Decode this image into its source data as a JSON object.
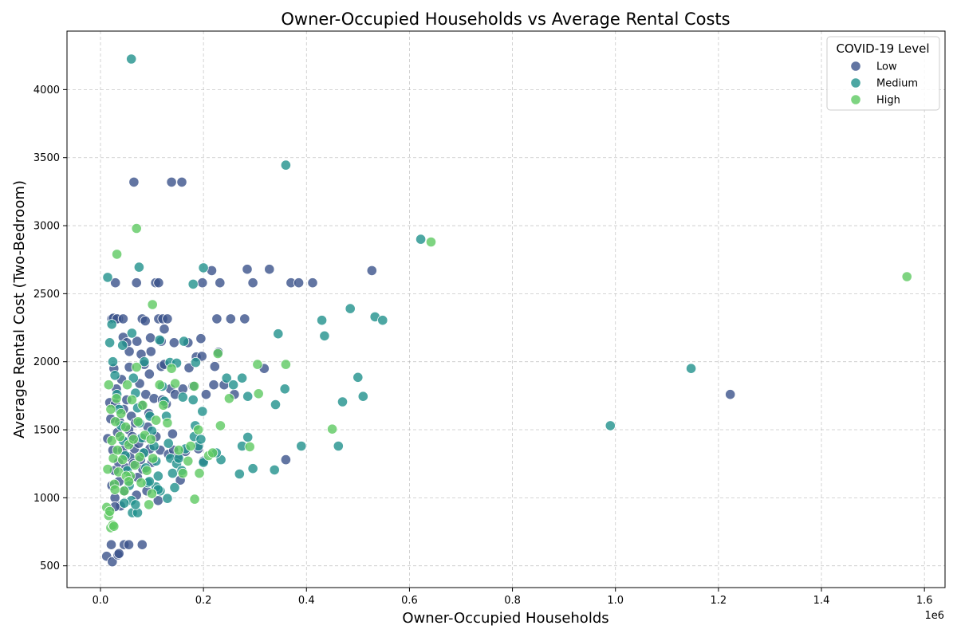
{
  "chart_data": {
    "type": "scatter",
    "title": "Owner-Occupied Households vs Average Rental Costs",
    "xlabel": "Owner-Occupied Households",
    "ylabel": "Average Rental Cost (Two-Bedroom)",
    "x_offset_label": "1e6",
    "xlim": [
      -65000,
      1640000
    ],
    "ylim": [
      340,
      4430
    ],
    "x_ticks": [
      0,
      200000,
      400000,
      600000,
      800000,
      1000000,
      1200000,
      1400000,
      1600000
    ],
    "x_tick_labels": [
      "0.0",
      "0.2",
      "0.4",
      "0.6",
      "0.8",
      "1.0",
      "1.2",
      "1.4",
      "1.6"
    ],
    "y_ticks": [
      500,
      1000,
      1500,
      2000,
      2500,
      3000,
      3500,
      4000
    ],
    "y_tick_labels": [
      "500",
      "1000",
      "1500",
      "2000",
      "2500",
      "3000",
      "3500",
      "4000"
    ],
    "grid": true,
    "legend": {
      "title": "COVID-19 Level",
      "position": "top-right",
      "entries": [
        "Low",
        "Medium",
        "High"
      ]
    },
    "series": [
      {
        "name": "Low",
        "color": "#3b528b",
        "points": [
          [
            65000,
            3320
          ],
          [
            138000,
            3320
          ],
          [
            158000,
            3320
          ],
          [
            29000,
            2580
          ],
          [
            70000,
            2580
          ],
          [
            107000,
            2580
          ],
          [
            113000,
            2580
          ],
          [
            198000,
            2580
          ],
          [
            232000,
            2580
          ],
          [
            296000,
            2580
          ],
          [
            370000,
            2580
          ],
          [
            385000,
            2580
          ],
          [
            412000,
            2580
          ],
          [
            216000,
            2670
          ],
          [
            285000,
            2680
          ],
          [
            328000,
            2680
          ],
          [
            527000,
            2670
          ],
          [
            22000,
            2315
          ],
          [
            35000,
            2315
          ],
          [
            81000,
            2315
          ],
          [
            87000,
            2300
          ],
          [
            113000,
            2315
          ],
          [
            121000,
            2315
          ],
          [
            130000,
            2315
          ],
          [
            226000,
            2315
          ],
          [
            253000,
            2315
          ],
          [
            280000,
            2315
          ],
          [
            124000,
            2240
          ],
          [
            44000,
            2180
          ],
          [
            97000,
            2175
          ],
          [
            71000,
            2150
          ],
          [
            118000,
            2150
          ],
          [
            143000,
            2140
          ],
          [
            195000,
            2170
          ],
          [
            51000,
            2140
          ],
          [
            56000,
            2075
          ],
          [
            79000,
            2055
          ],
          [
            98000,
            2075
          ],
          [
            186000,
            2035
          ],
          [
            197000,
            2040
          ],
          [
            229000,
            2070
          ],
          [
            26000,
            1950
          ],
          [
            56000,
            1960
          ],
          [
            85000,
            1980
          ],
          [
            95000,
            1910
          ],
          [
            118000,
            1965
          ],
          [
            172000,
            1955
          ],
          [
            222000,
            1965
          ],
          [
            318000,
            1950
          ],
          [
            14000,
            1435
          ],
          [
            18000,
            1700
          ],
          [
            20000,
            1580
          ],
          [
            22000,
            1090
          ],
          [
            24000,
            1350
          ],
          [
            27000,
            1200
          ],
          [
            28000,
            1000
          ],
          [
            29000,
            1690
          ],
          [
            31000,
            1800
          ],
          [
            33000,
            1480
          ],
          [
            35000,
            1260
          ],
          [
            36000,
            1120
          ],
          [
            37000,
            1560
          ],
          [
            39000,
            940
          ],
          [
            41000,
            1870
          ],
          [
            43000,
            1350
          ],
          [
            45000,
            1650
          ],
          [
            47000,
            1050
          ],
          [
            49000,
            1220
          ],
          [
            51000,
            1720
          ],
          [
            53000,
            1410
          ],
          [
            55000,
            1500
          ],
          [
            57000,
            1300
          ],
          [
            58000,
            1140
          ],
          [
            60000,
            1600
          ],
          [
            62000,
            1450
          ],
          [
            64000,
            1250
          ],
          [
            66000,
            1360
          ],
          [
            68000,
            1550
          ],
          [
            70000,
            1020
          ],
          [
            72000,
            1150
          ],
          [
            74000,
            1400
          ],
          [
            76000,
            1840
          ],
          [
            78000,
            1280
          ],
          [
            80000,
            1680
          ],
          [
            82000,
            1210
          ],
          [
            84000,
            1440
          ],
          [
            86000,
            1330
          ],
          [
            88000,
            1760
          ],
          [
            90000,
            1050
          ],
          [
            92000,
            1520
          ],
          [
            94000,
            1620
          ],
          [
            96000,
            1360
          ],
          [
            100000,
            1260
          ],
          [
            104000,
            1730
          ],
          [
            108000,
            1450
          ],
          [
            112000,
            980
          ],
          [
            116000,
            1350
          ],
          [
            120000,
            1720
          ],
          [
            124000,
            1980
          ],
          [
            128000,
            1690
          ],
          [
            132000,
            1320
          ],
          [
            136000,
            1800
          ],
          [
            140000,
            1470
          ],
          [
            142000,
            1350
          ],
          [
            145000,
            1760
          ],
          [
            150000,
            1300
          ],
          [
            155000,
            1130
          ],
          [
            160000,
            1800
          ],
          [
            165000,
            1340
          ],
          [
            170000,
            2140
          ],
          [
            180000,
            1820
          ],
          [
            190000,
            1360
          ],
          [
            200000,
            1270
          ],
          [
            205000,
            1760
          ],
          [
            220000,
            1830
          ],
          [
            240000,
            1830
          ],
          [
            260000,
            1760
          ],
          [
            360000,
            1280
          ],
          [
            12000,
            570
          ],
          [
            21000,
            655
          ],
          [
            23000,
            530
          ],
          [
            28000,
            935
          ],
          [
            34000,
            580
          ],
          [
            36000,
            590
          ],
          [
            46000,
            655
          ],
          [
            55000,
            655
          ],
          [
            81000,
            655
          ],
          [
            25000,
            2320
          ],
          [
            32000,
            2315
          ],
          [
            44000,
            2315
          ],
          [
            1223000,
            1760
          ]
        ]
      },
      {
        "name": "Medium",
        "color": "#21918c",
        "points": [
          [
            60000,
            4225
          ],
          [
            360000,
            3445
          ],
          [
            622000,
            2900
          ],
          [
            14000,
            2620
          ],
          [
            75000,
            2695
          ],
          [
            200000,
            2690
          ],
          [
            180000,
            2570
          ],
          [
            485000,
            2390
          ],
          [
            533000,
            2330
          ],
          [
            548000,
            2305
          ],
          [
            430000,
            2305
          ],
          [
            435000,
            2190
          ],
          [
            345000,
            2205
          ],
          [
            61000,
            2210
          ],
          [
            22000,
            2275
          ],
          [
            18000,
            2140
          ],
          [
            43000,
            2120
          ],
          [
            85000,
            2000
          ],
          [
            115000,
            2160
          ],
          [
            162000,
            2150
          ],
          [
            135000,
            1995
          ],
          [
            148000,
            1990
          ],
          [
            185000,
            1995
          ],
          [
            275000,
            1880
          ],
          [
            245000,
            1880
          ],
          [
            500000,
            1885
          ],
          [
            1147000,
            1950
          ],
          [
            358000,
            1800
          ],
          [
            258000,
            1830
          ],
          [
            286000,
            1745
          ],
          [
            340000,
            1685
          ],
          [
            470000,
            1705
          ],
          [
            510000,
            1745
          ],
          [
            180000,
            1720
          ],
          [
            198000,
            1635
          ],
          [
            160000,
            1740
          ],
          [
            990000,
            1530
          ],
          [
            286000,
            1445
          ],
          [
            275000,
            1380
          ],
          [
            390000,
            1380
          ],
          [
            462000,
            1380
          ],
          [
            234000,
            1280
          ],
          [
            296000,
            1215
          ],
          [
            338000,
            1205
          ],
          [
            270000,
            1175
          ],
          [
            225000,
            1330
          ],
          [
            24000,
            2000
          ],
          [
            28000,
            1900
          ],
          [
            32000,
            1760
          ],
          [
            36000,
            1650
          ],
          [
            40000,
            1530
          ],
          [
            44000,
            1420
          ],
          [
            48000,
            1310
          ],
          [
            52000,
            1200
          ],
          [
            56000,
            1090
          ],
          [
            60000,
            980
          ],
          [
            64000,
            1880
          ],
          [
            68000,
            1770
          ],
          [
            72000,
            1660
          ],
          [
            76000,
            1550
          ],
          [
            80000,
            1440
          ],
          [
            84000,
            1330
          ],
          [
            88000,
            1220
          ],
          [
            92000,
            1110
          ],
          [
            96000,
            1600
          ],
          [
            100000,
            1490
          ],
          [
            104000,
            1380
          ],
          [
            108000,
            1270
          ],
          [
            112000,
            1160
          ],
          [
            116000,
            1050
          ],
          [
            120000,
            1820
          ],
          [
            124000,
            1710
          ],
          [
            128000,
            1600
          ],
          [
            132000,
            1400
          ],
          [
            136000,
            1290
          ],
          [
            140000,
            1180
          ],
          [
            144000,
            1075
          ],
          [
            148000,
            1250
          ],
          [
            152000,
            1290
          ],
          [
            158000,
            1200
          ],
          [
            165000,
            1360
          ],
          [
            182000,
            1450
          ],
          [
            184000,
            1530
          ],
          [
            190000,
            1380
          ],
          [
            195000,
            1430
          ],
          [
            200000,
            1260
          ],
          [
            130000,
            995
          ],
          [
            62000,
            890
          ],
          [
            72000,
            890
          ],
          [
            68000,
            950
          ],
          [
            46000,
            960
          ],
          [
            108000,
            1080
          ],
          [
            112000,
            1060
          ],
          [
            95000,
            1120
          ]
        ]
      },
      {
        "name": "High",
        "color": "#5ec962",
        "points": [
          [
            70000,
            2980
          ],
          [
            32000,
            2790
          ],
          [
            642000,
            2880
          ],
          [
            1566000,
            2625
          ],
          [
            101000,
            2420
          ],
          [
            228000,
            2060
          ],
          [
            305000,
            1980
          ],
          [
            360000,
            1980
          ],
          [
            250000,
            1730
          ],
          [
            307000,
            1765
          ],
          [
            233000,
            1530
          ],
          [
            450000,
            1505
          ],
          [
            290000,
            1375
          ],
          [
            183000,
            990
          ],
          [
            16000,
            1830
          ],
          [
            20000,
            1650
          ],
          [
            22000,
            1420
          ],
          [
            25000,
            1290
          ],
          [
            27000,
            1100
          ],
          [
            29000,
            1560
          ],
          [
            31000,
            1730
          ],
          [
            33000,
            1350
          ],
          [
            35000,
            1190
          ],
          [
            38000,
            1450
          ],
          [
            40000,
            1620
          ],
          [
            43000,
            1280
          ],
          [
            46000,
            1050
          ],
          [
            49000,
            1520
          ],
          [
            52000,
            1830
          ],
          [
            55000,
            1390
          ],
          [
            58000,
            1160
          ],
          [
            61000,
            1720
          ],
          [
            64000,
            1430
          ],
          [
            67000,
            1240
          ],
          [
            70000,
            1960
          ],
          [
            73000,
            1560
          ],
          [
            76000,
            1300
          ],
          [
            79000,
            1110
          ],
          [
            82000,
            1680
          ],
          [
            86000,
            1460
          ],
          [
            90000,
            1200
          ],
          [
            94000,
            950
          ],
          [
            98000,
            1430
          ],
          [
            102000,
            1290
          ],
          [
            108000,
            1570
          ],
          [
            115000,
            1830
          ],
          [
            122000,
            1680
          ],
          [
            130000,
            1550
          ],
          [
            138000,
            1950
          ],
          [
            145000,
            1840
          ],
          [
            152000,
            1350
          ],
          [
            160000,
            1180
          ],
          [
            170000,
            1270
          ],
          [
            175000,
            1380
          ],
          [
            182000,
            1820
          ],
          [
            190000,
            1500
          ],
          [
            192000,
            1180
          ],
          [
            210000,
            1310
          ],
          [
            218000,
            1330
          ],
          [
            12000,
            930
          ],
          [
            16000,
            870
          ],
          [
            18000,
            900
          ],
          [
            20000,
            780
          ],
          [
            24000,
            800
          ],
          [
            26000,
            790
          ],
          [
            14000,
            1210
          ],
          [
            28000,
            1060
          ],
          [
            50000,
            1160
          ],
          [
            55000,
            1120
          ],
          [
            100000,
            1030
          ]
        ]
      }
    ]
  }
}
